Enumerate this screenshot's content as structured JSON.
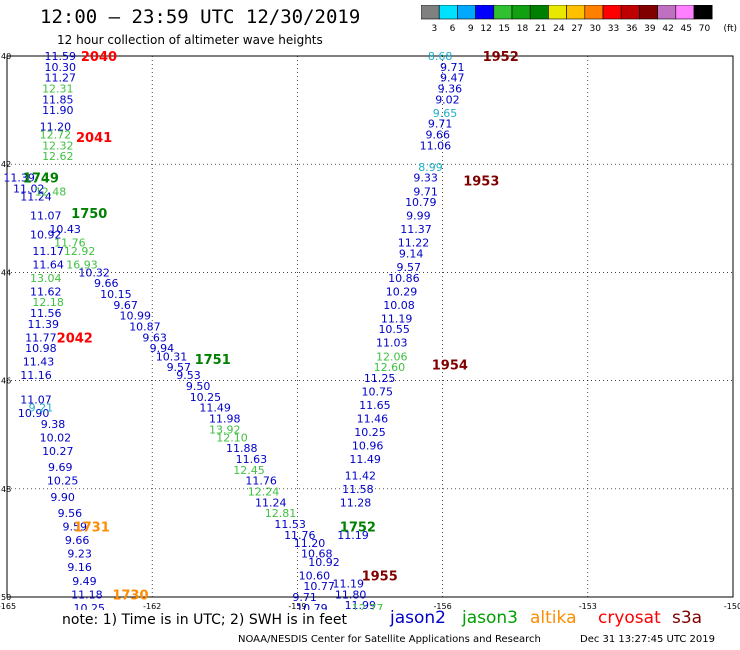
{
  "title": "12:00 – 23:59 UTC 12/30/2019",
  "subtitle": "12 hour collection of altimeter wave heights",
  "colorbar": {
    "unit": "(ft)",
    "labels": [
      "3",
      "6",
      "9",
      "12",
      "15",
      "18",
      "21",
      "24",
      "27",
      "30",
      "33",
      "36",
      "39",
      "42",
      "45",
      "70"
    ],
    "colors": [
      "#808080",
      "#00e0ff",
      "#00a8ff",
      "#0000ff",
      "#30c030",
      "#10a010",
      "#008000",
      "#e8e800",
      "#ffc000",
      "#ff8000",
      "#ff0000",
      "#c00000",
      "#800000",
      "#c070c0",
      "#ff80ff",
      "#000000"
    ]
  },
  "axes": {
    "lat_labels": [
      "40",
      "42",
      "44",
      "46",
      "48",
      "50"
    ],
    "lon_labels": [
      "-165",
      "-162",
      "-159",
      "-156",
      "-153",
      "-150"
    ]
  },
  "satellites": [
    {
      "name": "jason2",
      "color": "#0000c8"
    },
    {
      "name": "jason3",
      "color": "#00a000"
    },
    {
      "name": "altika",
      "color": "#ff8c00"
    },
    {
      "name": "cryosat",
      "color": "#ff0000"
    },
    {
      "name": "s3a",
      "color": "#800000"
    }
  ],
  "note": "note:  1) Time is in UTC; 2) SWH is in feet",
  "credit": "NOAA/NESDIS Center for Satellite Applications and Research",
  "stamp": "Dec 31 13:27:45 UTC 2019",
  "time_labels": [
    {
      "text": "2040",
      "color": "#ff0000",
      "lon": -163.1,
      "lat": -40.0
    },
    {
      "text": "2041",
      "color": "#ff0000",
      "lon": -163.2,
      "lat": -41.5
    },
    {
      "text": "2042",
      "color": "#ff0000",
      "lon": -163.6,
      "lat": -45.2
    },
    {
      "text": "1749",
      "color": "#008000",
      "lon": -164.3,
      "lat": -42.25
    },
    {
      "text": "1750",
      "color": "#008000",
      "lon": -163.3,
      "lat": -42.9
    },
    {
      "text": "1751",
      "color": "#008000",
      "lon": -160.75,
      "lat": -45.6
    },
    {
      "text": "1752",
      "color": "#008000",
      "lon": -157.75,
      "lat": -48.7
    },
    {
      "text": "1731",
      "color": "#ff8c00",
      "lon": -163.25,
      "lat": -48.7
    },
    {
      "text": "1730",
      "color": "#ff8c00",
      "lon": -162.45,
      "lat": -49.95
    },
    {
      "text": "1952",
      "color": "#800000",
      "lon": -154.8,
      "lat": -40.0
    },
    {
      "text": "1953",
      "color": "#800000",
      "lon": -155.2,
      "lat": -42.3
    },
    {
      "text": "1954",
      "color": "#800000",
      "lon": -155.85,
      "lat": -45.7
    },
    {
      "text": "1955",
      "color": "#800000",
      "lon": -157.3,
      "lat": -49.6
    }
  ],
  "tracks": [
    {
      "sat": "jason2",
      "points": [
        {
          "v": "11.59",
          "lon": -163.9,
          "lat": -40.0
        },
        {
          "v": "10.30",
          "lon": -163.9,
          "lat": -40.2
        },
        {
          "v": "11.27",
          "lon": -163.9,
          "lat": -40.4
        },
        {
          "v": "11.85",
          "lon": -163.95,
          "lat": -40.8
        },
        {
          "v": "11.90",
          "lon": -163.95,
          "lat": -41.0
        },
        {
          "v": "11.20",
          "lon": -164.0,
          "lat": -41.3
        },
        {
          "v": "11.39",
          "lon": -164.75,
          "lat": -42.25
        },
        {
          "v": "11.02",
          "lon": -164.55,
          "lat": -42.45
        },
        {
          "v": "11.24",
          "lon": -164.4,
          "lat": -42.6
        },
        {
          "v": "11.07",
          "lon": -164.2,
          "lat": -42.95
        },
        {
          "v": "10.92",
          "lon": -164.2,
          "lat": -43.3
        },
        {
          "v": "11.17",
          "lon": -164.15,
          "lat": -43.6
        },
        {
          "v": "11.64",
          "lon": -164.15,
          "lat": -43.85
        },
        {
          "v": "10.43",
          "lon": -163.8,
          "lat": -43.2
        },
        {
          "v": "10.32",
          "lon": -163.2,
          "lat": -44.0
        },
        {
          "v": "9.66",
          "lon": -162.95,
          "lat": -44.2
        },
        {
          "v": "10.15",
          "lon": -162.75,
          "lat": -44.4
        },
        {
          "v": "9.67",
          "lon": -162.55,
          "lat": -44.6
        },
        {
          "v": "10.99",
          "lon": -162.35,
          "lat": -44.8
        },
        {
          "v": "10.87",
          "lon": -162.15,
          "lat": -45.0
        },
        {
          "v": "9.63",
          "lon": -161.95,
          "lat": -45.2
        },
        {
          "v": "9.94",
          "lon": -161.8,
          "lat": -45.4
        },
        {
          "v": "10.31",
          "lon": -161.6,
          "lat": -45.55
        },
        {
          "v": "9.57",
          "lon": -161.45,
          "lat": -45.75
        },
        {
          "v": "9.53",
          "lon": -161.25,
          "lat": -45.9
        },
        {
          "v": "9.50",
          "lon": -161.05,
          "lat": -46.1
        },
        {
          "v": "10.25",
          "lon": -160.9,
          "lat": -46.3
        },
        {
          "v": "11.49",
          "lon": -160.7,
          "lat": -46.5
        },
        {
          "v": "11.98",
          "lon": -160.5,
          "lat": -46.7
        },
        {
          "v": "11.88",
          "lon": -160.15,
          "lat": -47.25
        },
        {
          "v": "11.63",
          "lon": -159.95,
          "lat": -47.45
        },
        {
          "v": "11.76",
          "lon": -159.75,
          "lat": -47.85
        },
        {
          "v": "11.24",
          "lon": -159.55,
          "lat": -48.25
        },
        {
          "v": "11.53",
          "lon": -159.15,
          "lat": -48.65
        },
        {
          "v": "11.76",
          "lon": -158.95,
          "lat": -48.85
        },
        {
          "v": "11.20",
          "lon": -158.75,
          "lat": -49.0
        },
        {
          "v": "10.68",
          "lon": -158.6,
          "lat": -49.2
        },
        {
          "v": "10.92",
          "lon": -158.45,
          "lat": -49.35
        },
        {
          "v": "10.60",
          "lon": -158.65,
          "lat": -49.6
        },
        {
          "v": "10.77",
          "lon": -158.55,
          "lat": -49.8
        },
        {
          "v": "9.71",
          "lon": -158.85,
          "lat": -50.0
        },
        {
          "v": "10.79",
          "lon": -158.7,
          "lat": -50.2
        },
        {
          "v": "11.62",
          "lon": -164.2,
          "lat": -44.35
        },
        {
          "v": "11.56",
          "lon": -164.2,
          "lat": -44.75
        },
        {
          "v": "11.39",
          "lon": -164.25,
          "lat": -44.95
        },
        {
          "v": "11.77",
          "lon": -164.3,
          "lat": -45.2
        },
        {
          "v": "10.98",
          "lon": -164.3,
          "lat": -45.4
        },
        {
          "v": "11.43",
          "lon": -164.35,
          "lat": -45.65
        },
        {
          "v": "11.16",
          "lon": -164.4,
          "lat": -45.9
        },
        {
          "v": "11.07",
          "lon": -164.4,
          "lat": -46.35
        },
        {
          "v": "10.90",
          "lon": -164.45,
          "lat": -46.6
        },
        {
          "v": "9.38",
          "lon": -164.05,
          "lat": -46.8
        },
        {
          "v": "10.02",
          "lon": -164.0,
          "lat": -47.05
        },
        {
          "v": "10.27",
          "lon": -163.95,
          "lat": -47.3
        },
        {
          "v": "9.69",
          "lon": -163.9,
          "lat": -47.6
        },
        {
          "v": "10.25",
          "lon": -163.85,
          "lat": -47.85
        },
        {
          "v": "9.90",
          "lon": -163.85,
          "lat": -48.15
        },
        {
          "v": "9.56",
          "lon": -163.7,
          "lat": -48.45
        },
        {
          "v": "9.59",
          "lon": -163.6,
          "lat": -48.7
        },
        {
          "v": "9.66",
          "lon": -163.55,
          "lat": -48.95
        },
        {
          "v": "9.23",
          "lon": -163.5,
          "lat": -49.2
        },
        {
          "v": "9.16",
          "lon": -163.5,
          "lat": -49.45
        },
        {
          "v": "9.49",
          "lon": -163.4,
          "lat": -49.7
        },
        {
          "v": "11.18",
          "lon": -163.35,
          "lat": -49.95
        },
        {
          "v": "10.25",
          "lon": -163.3,
          "lat": -50.2
        },
        {
          "v": "9.71",
          "lon": -155.8,
          "lat": -40.2
        },
        {
          "v": "9.47",
          "lon": -155.8,
          "lat": -40.4
        },
        {
          "v": "9.36",
          "lon": -155.85,
          "lat": -40.6
        },
        {
          "v": "9.02",
          "lon": -155.9,
          "lat": -40.8
        },
        {
          "v": "9.71",
          "lon": -156.05,
          "lat": -41.25
        },
        {
          "v": "9.66",
          "lon": -156.1,
          "lat": -41.45
        },
        {
          "v": "11.06",
          "lon": -156.15,
          "lat": -41.65
        },
        {
          "v": "9.33",
          "lon": -156.35,
          "lat": -42.25
        },
        {
          "v": "9.71",
          "lon": -156.35,
          "lat": -42.5
        },
        {
          "v": "10.79",
          "lon": -156.45,
          "lat": -42.7
        },
        {
          "v": "9.99",
          "lon": -156.5,
          "lat": -42.95
        },
        {
          "v": "11.37",
          "lon": -156.55,
          "lat": -43.2
        },
        {
          "v": "11.22",
          "lon": -156.6,
          "lat": -43.45
        },
        {
          "v": "9.14",
          "lon": -156.65,
          "lat": -43.65
        },
        {
          "v": "9.57",
          "lon": -156.7,
          "lat": -43.9
        },
        {
          "v": "10.86",
          "lon": -156.8,
          "lat": -44.1
        },
        {
          "v": "10.29",
          "lon": -156.85,
          "lat": -44.35
        },
        {
          "v": "10.08",
          "lon": -156.9,
          "lat": -44.6
        },
        {
          "v": "11.19",
          "lon": -156.95,
          "lat": -44.85
        },
        {
          "v": "10.55",
          "lon": -157.0,
          "lat": -45.05
        },
        {
          "v": "11.03",
          "lon": -157.05,
          "lat": -45.3
        },
        {
          "v": "11.25",
          "lon": -157.3,
          "lat": -45.95
        },
        {
          "v": "10.75",
          "lon": -157.35,
          "lat": -46.2
        },
        {
          "v": "11.65",
          "lon": -157.4,
          "lat": -46.45
        },
        {
          "v": "11.46",
          "lon": -157.45,
          "lat": -46.7
        },
        {
          "v": "10.25",
          "lon": -157.5,
          "lat": -46.95
        },
        {
          "v": "10.96",
          "lon": -157.55,
          "lat": -47.2
        },
        {
          "v": "11.49",
          "lon": -157.6,
          "lat": -47.45
        },
        {
          "v": "11.42",
          "lon": -157.7,
          "lat": -47.75
        },
        {
          "v": "11.58",
          "lon": -157.75,
          "lat": -48.0
        },
        {
          "v": "11.28",
          "lon": -157.8,
          "lat": -48.25
        },
        {
          "v": "11.19",
          "lon": -157.85,
          "lat": -48.85
        },
        {
          "v": "11.19",
          "lon": -157.95,
          "lat": -49.75
        },
        {
          "v": "11.80",
          "lon": -157.9,
          "lat": -49.95
        },
        {
          "v": "11.99",
          "lon": -157.7,
          "lat": -50.15
        }
      ]
    },
    {
      "sat": "jason3",
      "points": [
        {
          "v": "12.31",
          "lon": -163.95,
          "lat": -40.6
        },
        {
          "v": "12.72",
          "lon": -164.0,
          "lat": -41.45
        },
        {
          "v": "12.32",
          "lon": -163.95,
          "lat": -41.65
        },
        {
          "v": "12.62",
          "lon": -163.95,
          "lat": -41.85
        },
        {
          "v": "12.48",
          "lon": -164.1,
          "lat": -42.5
        },
        {
          "v": "11.76",
          "lon": -163.7,
          "lat": -43.45
        },
        {
          "v": "12.92",
          "lon": -163.5,
          "lat": -43.6
        },
        {
          "v": "16.93",
          "lon": -163.45,
          "lat": -43.85
        },
        {
          "v": "13.04",
          "lon": -164.2,
          "lat": -44.1
        },
        {
          "v": "12.18",
          "lon": -164.15,
          "lat": -44.55
        },
        {
          "v": "12.06",
          "lon": -157.05,
          "lat": -45.55
        },
        {
          "v": "12.60",
          "lon": -157.1,
          "lat": -45.75
        },
        {
          "v": "13.92",
          "lon": -160.5,
          "lat": -46.9
        },
        {
          "v": "12.10",
          "lon": -160.35,
          "lat": -47.05
        },
        {
          "v": "12.45",
          "lon": -160.0,
          "lat": -47.65
        },
        {
          "v": "12.24",
          "lon": -159.7,
          "lat": -48.05
        },
        {
          "v": "12.81",
          "lon": -159.35,
          "lat": -48.45
        },
        {
          "v": "12.77",
          "lon": -157.55,
          "lat": -50.2
        }
      ]
    },
    {
      "sat": "cyan",
      "points": [
        {
          "v": "8.68",
          "lon": -156.05,
          "lat": -40.0
        },
        {
          "v": "9.65",
          "lon": -155.95,
          "lat": -41.05
        },
        {
          "v": "8.99",
          "lon": -156.25,
          "lat": -42.05
        },
        {
          "v": "9.21",
          "lon": -164.3,
          "lat": -46.5
        }
      ]
    }
  ]
}
